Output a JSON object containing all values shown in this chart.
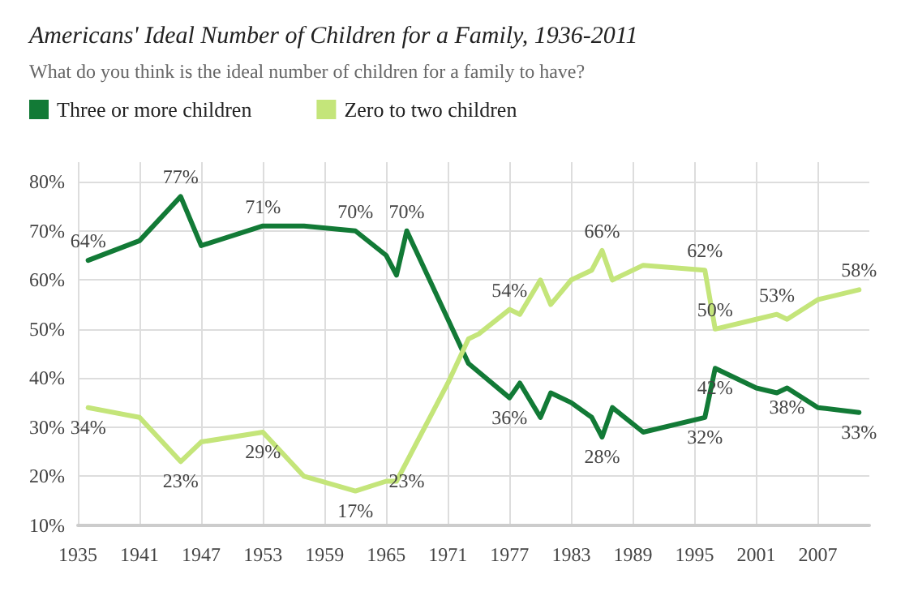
{
  "chart_data": {
    "type": "line",
    "title": "Americans' Ideal Number of Children for a Family, 1936-2011",
    "subtitle": "What do you think is the ideal number of children for a family to have?",
    "series": [
      {
        "name": "Three or more children",
        "color": "#127a36",
        "x": [
          1936,
          1941,
          1945,
          1947,
          1953,
          1957,
          1962,
          1965,
          1966,
          1967,
          1973,
          1977,
          1978,
          1980,
          1981,
          1983,
          1985,
          1986,
          1987,
          1990,
          1996,
          1997,
          2001,
          2003,
          2004,
          2007,
          2011
        ],
        "values": [
          64,
          68,
          77,
          67,
          71,
          71,
          70,
          65,
          61,
          70,
          43,
          36,
          39,
          32,
          37,
          35,
          32,
          28,
          34,
          29,
          32,
          42,
          38,
          37,
          38,
          34,
          33
        ],
        "value_labels": [
          "64%",
          null,
          "77%",
          null,
          "71%",
          null,
          "70%",
          null,
          null,
          "70%",
          null,
          "36%",
          null,
          null,
          null,
          null,
          null,
          "28%",
          null,
          null,
          "32%",
          "42%",
          null,
          null,
          "38%",
          null,
          "33%"
        ]
      },
      {
        "name": "Zero to two children",
        "color": "#c4e57a",
        "x": [
          1936,
          1941,
          1945,
          1947,
          1953,
          1957,
          1962,
          1965,
          1966,
          1967,
          1971,
          1973,
          1974,
          1977,
          1978,
          1980,
          1981,
          1983,
          1985,
          1986,
          1987,
          1990,
          1996,
          1997,
          2001,
          2003,
          2004,
          2007,
          2011
        ],
        "values": [
          34,
          32,
          23,
          27,
          29,
          20,
          17,
          19,
          19,
          23,
          39,
          48,
          49,
          54,
          53,
          60,
          55,
          60,
          62,
          66,
          60,
          63,
          62,
          50,
          52,
          53,
          52,
          56,
          58
        ],
        "value_labels": [
          "34%",
          null,
          "23%",
          null,
          "29%",
          null,
          "17%",
          null,
          null,
          "23%",
          null,
          null,
          null,
          "54%",
          null,
          null,
          null,
          null,
          null,
          "66%",
          null,
          null,
          "62%",
          "50%",
          null,
          "53%",
          null,
          null,
          "58%"
        ]
      }
    ],
    "xlim": [
      1935,
      2012
    ],
    "xticks": [
      1935,
      1941,
      1947,
      1953,
      1959,
      1965,
      1971,
      1977,
      1983,
      1989,
      1995,
      2001,
      2007
    ],
    "ylim": [
      10,
      84
    ],
    "yticks": [
      {
        "value": 10,
        "label": "10%"
      },
      {
        "value": 20,
        "label": "20%"
      },
      {
        "value": 30,
        "label": "30%"
      },
      {
        "value": 40,
        "label": "40%"
      },
      {
        "value": 50,
        "label": "50%"
      },
      {
        "value": 60,
        "label": "60%"
      },
      {
        "value": 70,
        "label": "70%"
      },
      {
        "value": 80,
        "label": "80%"
      }
    ],
    "grid": true,
    "legend": "top left",
    "marker": "none",
    "line_style": "solid"
  }
}
